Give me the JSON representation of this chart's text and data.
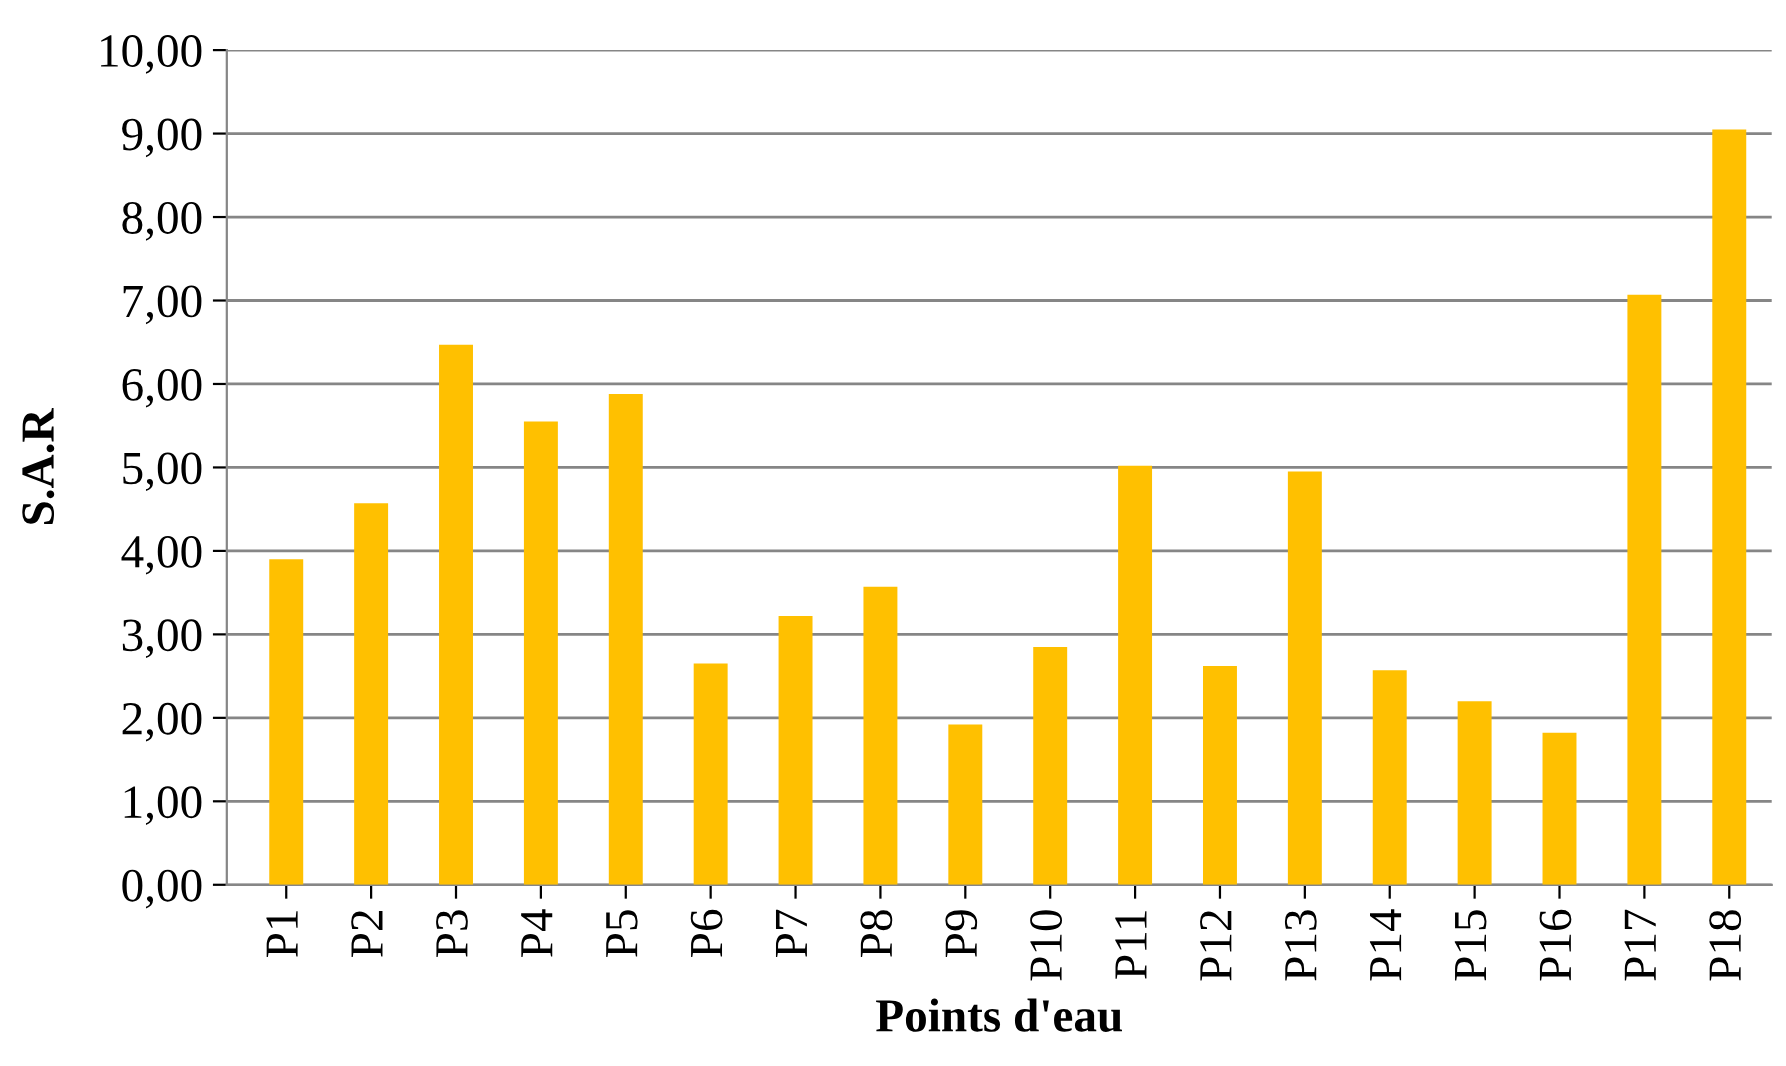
{
  "chart_data": {
    "type": "bar",
    "xlabel": "Points d'eau",
    "ylabel": "S.A.R",
    "categories": [
      "P1",
      "P2",
      "P3",
      "P4",
      "P5",
      "P6",
      "P7",
      "P8",
      "P9",
      "P10",
      "P11",
      "P12",
      "P13",
      "P14",
      "P15",
      "P16",
      "P17",
      "P18"
    ],
    "values": [
      3.9,
      4.57,
      6.47,
      5.55,
      5.88,
      2.65,
      3.22,
      3.57,
      1.92,
      2.85,
      5.02,
      2.62,
      4.95,
      2.57,
      2.2,
      1.82,
      7.07,
      9.05
    ],
    "color": "#ffc000",
    "ylim": [
      0,
      10
    ],
    "yticks": [
      {
        "value": 0,
        "label": "0,00"
      },
      {
        "value": 1,
        "label": "1,00"
      },
      {
        "value": 2,
        "label": "2,00"
      },
      {
        "value": 3,
        "label": "3,00"
      },
      {
        "value": 4,
        "label": "4,00"
      },
      {
        "value": 5,
        "label": "5,00"
      },
      {
        "value": 6,
        "label": "6,00"
      },
      {
        "value": 7,
        "label": "7,00"
      },
      {
        "value": 8,
        "label": "8,00"
      },
      {
        "value": 9,
        "label": "9,00"
      },
      {
        "value": 10,
        "label": "10,00"
      }
    ],
    "grid": "y"
  }
}
